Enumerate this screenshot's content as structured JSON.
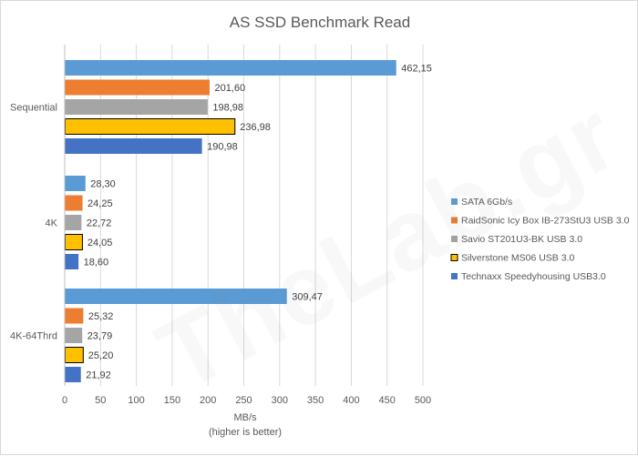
{
  "chart_data": {
    "type": "bar",
    "orientation": "horizontal",
    "title": "AS SSD Benchmark Read",
    "xlabel": "MB/s",
    "xlabel_note": "(higher is better)",
    "ylabel": "",
    "xlim": [
      0,
      500
    ],
    "xticks": [
      0,
      50,
      100,
      150,
      200,
      250,
      300,
      350,
      400,
      450,
      500
    ],
    "grid": true,
    "legend_position": "right",
    "categories": [
      "Sequential",
      "4K",
      "4K-64Thrd"
    ],
    "series": [
      {
        "name": "SATA 6Gb/s",
        "color": "#5b9bd5",
        "outlined": false,
        "values": [
          462.15,
          28.3,
          309.47
        ],
        "labels": [
          "462,15",
          "28,30",
          "309,47"
        ]
      },
      {
        "name": "RaidSonic Icy Box IB-273StU3 USB 3.0",
        "color": "#ed7d31",
        "outlined": false,
        "values": [
          201.6,
          24.25,
          25.32
        ],
        "labels": [
          "201,60",
          "24,25",
          "25,32"
        ]
      },
      {
        "name": "Savio ST201U3-BK USB 3.0",
        "color": "#a5a5a5",
        "outlined": false,
        "values": [
          198.98,
          22.72,
          23.79
        ],
        "labels": [
          "198,98",
          "22,72",
          "23,79"
        ]
      },
      {
        "name": "Silverstone MS06 USB 3.0",
        "color": "#ffc000",
        "outlined": true,
        "values": [
          236.98,
          24.05,
          25.2
        ],
        "labels": [
          "236,98",
          "24,05",
          "25,20"
        ]
      },
      {
        "name": "Technaxx Speedyhousing USB3.0",
        "color": "#4472c4",
        "outlined": false,
        "values": [
          190.98,
          18.6,
          21.92
        ],
        "labels": [
          "190,98",
          "18,60",
          "21,92"
        ]
      }
    ]
  },
  "watermark": "TheLab.gr"
}
